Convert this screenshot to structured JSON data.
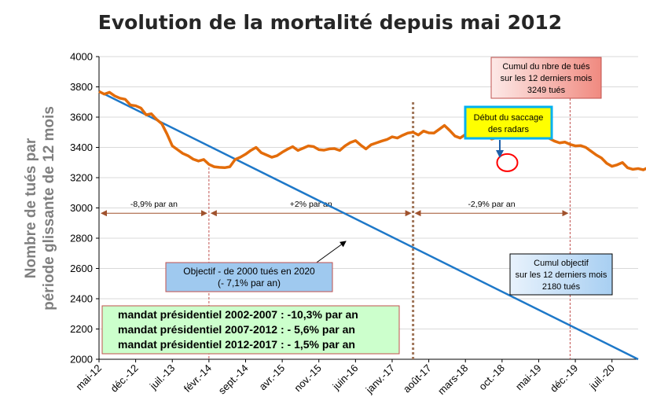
{
  "chart_data": {
    "type": "line",
    "title": "Evolution de la mortalité depuis mai 2012",
    "ylabel_line1": "Nombre de tués par",
    "ylabel_line2": "période  glissante de 12 mois",
    "ylim": [
      2000,
      4000
    ],
    "yticks": [
      2000,
      2200,
      2400,
      2600,
      2800,
      3000,
      3200,
      3400,
      3600,
      3800,
      4000
    ],
    "x_month_range": [
      "2012-05",
      "2020-12"
    ],
    "xtick_labels": [
      "mai-12",
      "déc.-12",
      "juil.-13",
      "févr.-14",
      "sept.-14",
      "avr.-15",
      "nov.-15",
      "juin-16",
      "janv.-17",
      "août-17",
      "mars-18",
      "oct.-18",
      "mai-19",
      "déc.-19",
      "juil.-20"
    ],
    "grid": true,
    "series": [
      {
        "kind": "actual",
        "color": "#e36c0a",
        "start_month": "2012-05",
        "values": [
          3770,
          3752,
          3764,
          3740,
          3725,
          3718,
          3680,
          3675,
          3660,
          3615,
          3622,
          3585,
          3556,
          3488,
          3410,
          3385,
          3360,
          3345,
          3322,
          3310,
          3320,
          3288,
          3272,
          3268,
          3266,
          3272,
          3320,
          3335,
          3355,
          3380,
          3400,
          3365,
          3350,
          3335,
          3345,
          3368,
          3388,
          3405,
          3380,
          3395,
          3410,
          3405,
          3385,
          3382,
          3390,
          3392,
          3380,
          3410,
          3432,
          3445,
          3415,
          3390,
          3418,
          3430,
          3442,
          3452,
          3470,
          3462,
          3480,
          3495,
          3500,
          3482,
          3508,
          3496,
          3495,
          3520,
          3545,
          3512,
          3475,
          3462,
          3485,
          3502,
          3505,
          3500,
          3482,
          3455,
          3465,
          3498,
          3520,
          3540,
          3525,
          3520,
          3515,
          3480,
          3475,
          3492,
          3460,
          3442,
          3430,
          3435,
          3420,
          3410,
          3412,
          3400,
          3375,
          3350,
          3330,
          3295,
          3275,
          3285,
          3300,
          3265,
          3255,
          3260,
          3252,
          3268,
          3282,
          3298,
          3310,
          3270,
          3245,
          3232,
          3242,
          3255,
          3250,
          3280,
          3270,
          3262,
          3249
        ]
      },
      {
        "kind": "objective",
        "color": "#1e78c8",
        "start_month": "2012-05",
        "start_value": 3770,
        "end_month": "2020-12",
        "end_value": 2000
      }
    ],
    "period_markers": [
      {
        "month": "2014-02",
        "color": "#c0504d"
      },
      {
        "month": "2017-05",
        "color": "#a0765a"
      },
      {
        "month": "2019-11",
        "color": "#c0504d"
      }
    ],
    "period_arrows": [
      {
        "from_month": "2012-05",
        "to_month": "2014-02",
        "y": 2965,
        "label": "-8,9% par an"
      },
      {
        "from_month": "2014-02",
        "to_month": "2017-05",
        "y": 2965,
        "label": "+2% par an"
      },
      {
        "from_month": "2017-05",
        "to_month": "2019-11",
        "y": 2965,
        "label": "-2,9% par an"
      }
    ],
    "radar_highlight": {
      "month": "2018-11",
      "value": 3268
    }
  },
  "annotations": {
    "cumul_box": {
      "lines": [
        "Cumul du nbre de tués",
        "sur les 12 derniers mois",
        "3249 tués"
      ]
    },
    "saccage_box": {
      "lines": [
        "Début du saccage",
        "des radars"
      ]
    },
    "objectif_box": {
      "lines": [
        "Objectif - de 2000 tués en 2020",
        "(- 7,1% par an)"
      ]
    },
    "cumul_objectif_box": {
      "lines": [
        "Cumul objectif",
        "sur les 12 derniers mois",
        "2180 tués"
      ]
    },
    "mandat_box": {
      "lines": [
        "mandat présidentiel 2002-2007 : -10,3% par an",
        "mandat présidentiel 2007-2012 : - 5,6% par an",
        "mandat présidentiel 2012-2017 : - 1,5% par an"
      ]
    }
  }
}
